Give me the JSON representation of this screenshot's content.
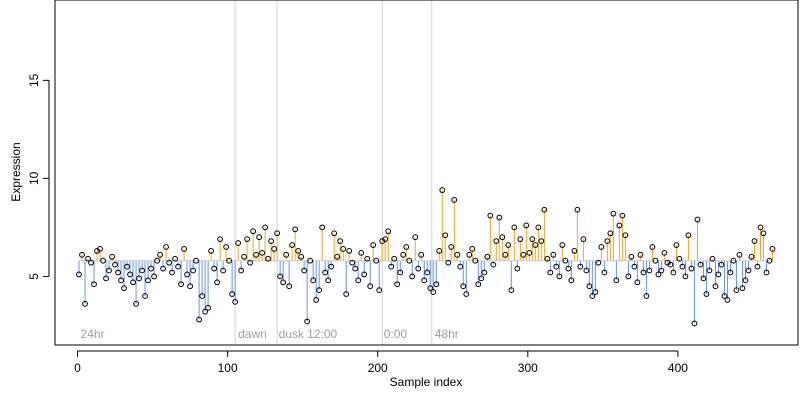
{
  "chart_data": {
    "type": "scatter",
    "title": "",
    "xlabel": "Sample index",
    "ylabel": "Expression",
    "xlim": [
      -15,
      480
    ],
    "ylim": [
      1.5,
      19.1
    ],
    "xticks": [
      0,
      100,
      200,
      300,
      400
    ],
    "yticks": [
      5,
      10,
      15
    ],
    "baseline": 5.8,
    "colors": {
      "above": "#f5a623",
      "below": "#6495ed",
      "divider": "#d3d3d3",
      "point_stroke": "#000000",
      "annotation": "#9e9e9e"
    },
    "dividers": [
      105,
      133,
      203,
      236
    ],
    "annotations": [
      {
        "label": "24hr",
        "x": 2
      },
      {
        "label": "dawn",
        "x": 107
      },
      {
        "label": "dusk",
        "x": 134
      },
      {
        "label": "12:00",
        "x": 153
      },
      {
        "label": "0:00",
        "x": 204
      },
      {
        "label": "48hr",
        "x": 238
      }
    ],
    "points": [
      [
        1,
        5.1
      ],
      [
        3,
        6.1
      ],
      [
        5,
        3.6
      ],
      [
        7,
        5.9
      ],
      [
        9,
        5.7
      ],
      [
        11,
        4.6
      ],
      [
        13,
        6.3
      ],
      [
        15,
        6.4
      ],
      [
        17,
        5.8
      ],
      [
        19,
        4.9
      ],
      [
        21,
        5.3
      ],
      [
        23,
        6.0
      ],
      [
        25,
        5.6
      ],
      [
        27,
        5.2
      ],
      [
        29,
        4.8
      ],
      [
        31,
        4.4
      ],
      [
        33,
        5.5
      ],
      [
        35,
        5.1
      ],
      [
        37,
        4.7
      ],
      [
        39,
        3.6
      ],
      [
        41,
        4.9
      ],
      [
        43,
        5.3
      ],
      [
        45,
        4.0
      ],
      [
        47,
        4.8
      ],
      [
        49,
        5.4
      ],
      [
        51,
        5.0
      ],
      [
        53,
        5.8
      ],
      [
        55,
        6.1
      ],
      [
        57,
        5.4
      ],
      [
        59,
        6.5
      ],
      [
        61,
        5.7
      ],
      [
        63,
        5.2
      ],
      [
        65,
        5.9
      ],
      [
        67,
        5.5
      ],
      [
        69,
        4.6
      ],
      [
        71,
        6.4
      ],
      [
        73,
        5.1
      ],
      [
        75,
        4.5
      ],
      [
        77,
        5.3
      ],
      [
        79,
        5.8
      ],
      [
        81,
        2.8
      ],
      [
        83,
        4.0
      ],
      [
        85,
        3.2
      ],
      [
        87,
        3.4
      ],
      [
        89,
        6.3
      ],
      [
        91,
        5.4
      ],
      [
        93,
        4.7
      ],
      [
        95,
        6.9
      ],
      [
        97,
        5.3
      ],
      [
        99,
        6.5
      ],
      [
        101,
        5.8
      ],
      [
        103,
        4.1
      ],
      [
        105,
        3.7
      ],
      [
        107,
        6.7
      ],
      [
        109,
        5.3
      ],
      [
        111,
        6.0
      ],
      [
        113,
        6.9
      ],
      [
        115,
        5.7
      ],
      [
        117,
        7.3
      ],
      [
        119,
        6.1
      ],
      [
        121,
        7.0
      ],
      [
        123,
        6.2
      ],
      [
        125,
        7.5
      ],
      [
        127,
        5.9
      ],
      [
        129,
        6.8
      ],
      [
        131,
        6.4
      ],
      [
        133,
        7.2
      ],
      [
        135,
        5.0
      ],
      [
        137,
        4.7
      ],
      [
        139,
        6.1
      ],
      [
        141,
        4.5
      ],
      [
        143,
        6.6
      ],
      [
        145,
        7.4
      ],
      [
        147,
        6.3
      ],
      [
        149,
        6.0
      ],
      [
        151,
        5.3
      ],
      [
        153,
        2.7
      ],
      [
        155,
        5.8
      ],
      [
        157,
        4.8
      ],
      [
        159,
        3.8
      ],
      [
        161,
        4.3
      ],
      [
        163,
        7.5
      ],
      [
        165,
        5.2
      ],
      [
        167,
        4.8
      ],
      [
        169,
        5.5
      ],
      [
        171,
        7.2
      ],
      [
        173,
        6.0
      ],
      [
        175,
        6.8
      ],
      [
        177,
        6.4
      ],
      [
        179,
        4.1
      ],
      [
        181,
        6.3
      ],
      [
        183,
        5.7
      ],
      [
        185,
        5.4
      ],
      [
        187,
        4.8
      ],
      [
        189,
        6.2
      ],
      [
        191,
        5.1
      ],
      [
        193,
        5.9
      ],
      [
        195,
        4.5
      ],
      [
        197,
        6.6
      ],
      [
        199,
        5.8
      ],
      [
        201,
        4.3
      ],
      [
        203,
        6.8
      ],
      [
        205,
        6.9
      ],
      [
        207,
        7.3
      ],
      [
        209,
        5.5
      ],
      [
        211,
        5.9
      ],
      [
        213,
        4.6
      ],
      [
        215,
        5.2
      ],
      [
        217,
        6.1
      ],
      [
        219,
        6.5
      ],
      [
        221,
        5.8
      ],
      [
        223,
        5.0
      ],
      [
        225,
        7.0
      ],
      [
        227,
        5.4
      ],
      [
        229,
        6.1
      ],
      [
        231,
        4.8
      ],
      [
        233,
        5.2
      ],
      [
        235,
        4.4
      ],
      [
        237,
        4.2
      ],
      [
        239,
        4.6
      ],
      [
        241,
        6.3
      ],
      [
        243,
        9.4
      ],
      [
        245,
        7.1
      ],
      [
        247,
        5.7
      ],
      [
        249,
        6.5
      ],
      [
        251,
        8.9
      ],
      [
        253,
        6.1
      ],
      [
        255,
        5.5
      ],
      [
        257,
        4.5
      ],
      [
        259,
        4.1
      ],
      [
        261,
        6.1
      ],
      [
        263,
        6.4
      ],
      [
        265,
        5.8
      ],
      [
        267,
        4.6
      ],
      [
        269,
        4.9
      ],
      [
        271,
        5.2
      ],
      [
        273,
        6.0
      ],
      [
        275,
        8.1
      ],
      [
        277,
        5.6
      ],
      [
        279,
        6.8
      ],
      [
        281,
        8.0
      ],
      [
        283,
        7.0
      ],
      [
        285,
        6.1
      ],
      [
        287,
        6.6
      ],
      [
        289,
        4.3
      ],
      [
        291,
        7.5
      ],
      [
        293,
        5.4
      ],
      [
        295,
        6.9
      ],
      [
        297,
        6.1
      ],
      [
        299,
        7.6
      ],
      [
        301,
        6.2
      ],
      [
        303,
        6.9
      ],
      [
        305,
        6.6
      ],
      [
        307,
        7.5
      ],
      [
        309,
        6.8
      ],
      [
        311,
        8.4
      ],
      [
        313,
        5.9
      ],
      [
        315,
        5.2
      ],
      [
        317,
        6.1
      ],
      [
        319,
        5.5
      ],
      [
        321,
        5.0
      ],
      [
        323,
        6.6
      ],
      [
        325,
        5.8
      ],
      [
        327,
        5.4
      ],
      [
        329,
        4.8
      ],
      [
        331,
        6.3
      ],
      [
        333,
        8.4
      ],
      [
        335,
        5.5
      ],
      [
        337,
        6.9
      ],
      [
        339,
        5.3
      ],
      [
        341,
        4.5
      ],
      [
        343,
        4.0
      ],
      [
        345,
        4.2
      ],
      [
        347,
        5.7
      ],
      [
        349,
        6.5
      ],
      [
        351,
        5.2
      ],
      [
        353,
        6.8
      ],
      [
        355,
        7.2
      ],
      [
        357,
        8.2
      ],
      [
        359,
        4.8
      ],
      [
        361,
        7.6
      ],
      [
        363,
        8.1
      ],
      [
        365,
        7.1
      ],
      [
        367,
        5.0
      ],
      [
        369,
        6.0
      ],
      [
        371,
        5.5
      ],
      [
        373,
        4.7
      ],
      [
        375,
        6.1
      ],
      [
        377,
        5.2
      ],
      [
        379,
        4.0
      ],
      [
        381,
        5.3
      ],
      [
        383,
        6.5
      ],
      [
        385,
        5.8
      ],
      [
        387,
        5.1
      ],
      [
        389,
        5.3
      ],
      [
        391,
        6.2
      ],
      [
        393,
        5.7
      ],
      [
        395,
        5.6
      ],
      [
        397,
        5.2
      ],
      [
        399,
        6.6
      ],
      [
        401,
        5.9
      ],
      [
        403,
        5.5
      ],
      [
        405,
        5.0
      ],
      [
        407,
        7.1
      ],
      [
        409,
        5.4
      ],
      [
        411,
        2.6
      ],
      [
        413,
        7.9
      ],
      [
        415,
        5.6
      ],
      [
        417,
        4.9
      ],
      [
        419,
        4.1
      ],
      [
        421,
        5.3
      ],
      [
        423,
        5.9
      ],
      [
        425,
        4.5
      ],
      [
        427,
        5.1
      ],
      [
        429,
        5.6
      ],
      [
        431,
        4.0
      ],
      [
        433,
        3.8
      ],
      [
        435,
        5.2
      ],
      [
        437,
        5.8
      ],
      [
        439,
        4.3
      ],
      [
        441,
        6.1
      ],
      [
        443,
        4.4
      ],
      [
        445,
        4.8
      ],
      [
        447,
        5.3
      ],
      [
        449,
        6.0
      ],
      [
        451,
        6.8
      ],
      [
        453,
        5.5
      ],
      [
        455,
        7.5
      ],
      [
        457,
        7.2
      ],
      [
        459,
        5.2
      ],
      [
        461,
        5.8
      ],
      [
        463,
        6.4
      ]
    ]
  }
}
